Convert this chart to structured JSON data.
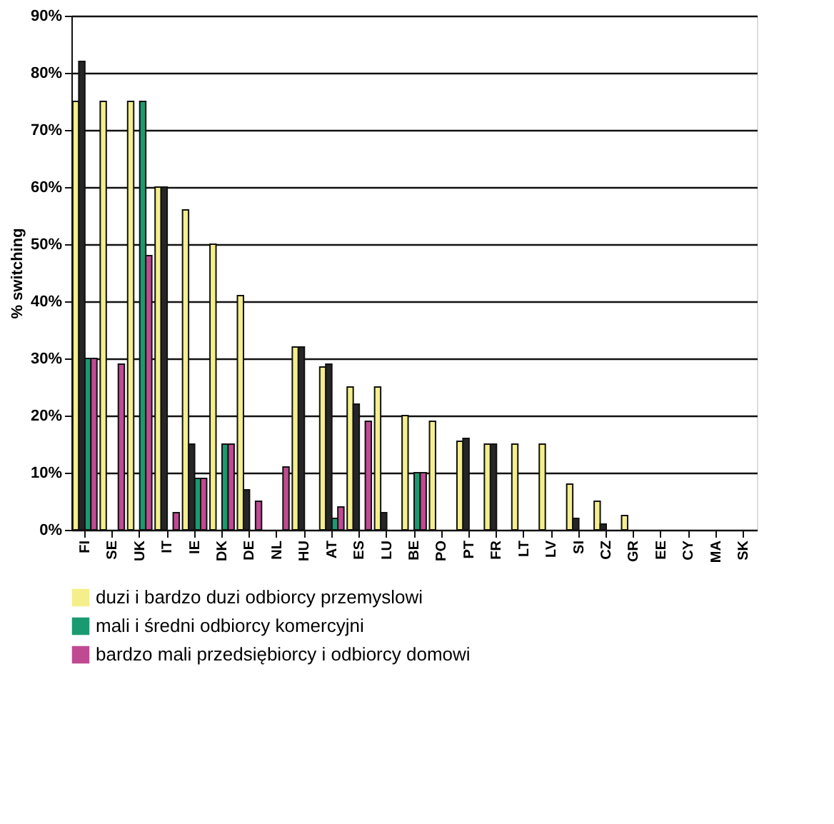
{
  "chart_data": {
    "type": "bar",
    "ylabel": "% switching",
    "categories": [
      "FI",
      "SE",
      "UK",
      "IT",
      "IE",
      "DK",
      "DE",
      "NL",
      "HU",
      "AT",
      "ES",
      "LU",
      "BE",
      "PO",
      "PT",
      "FR",
      "LT",
      "LV",
      "SI",
      "CZ",
      "GR",
      "EE",
      "CY",
      "MA",
      "SK"
    ],
    "series": [
      {
        "name": "duzi i bardzo duzi odbiorcy przemyslowi",
        "color": "#f4ef8a",
        "values": [
          75,
          75,
          75,
          60,
          56,
          50,
          41,
          null,
          32,
          28.5,
          25,
          25,
          20,
          19,
          15.5,
          15,
          15,
          15,
          8,
          5,
          2.5,
          null,
          null,
          null,
          null
        ]
      },
      {
        "color": "#262626",
        "values": [
          82,
          null,
          null,
          60,
          15,
          null,
          7,
          null,
          32,
          29,
          22,
          3,
          null,
          null,
          16,
          15,
          null,
          null,
          2,
          1,
          null,
          null,
          null,
          null,
          null
        ]
      },
      {
        "name": "mali i średni odbiorcy komercyjni",
        "color": "#1a9a70",
        "values": [
          30,
          null,
          75,
          null,
          9,
          15,
          null,
          null,
          null,
          2,
          null,
          null,
          10,
          null,
          null,
          null,
          null,
          null,
          null,
          null,
          null,
          null,
          null,
          null,
          null
        ]
      },
      {
        "name": "bardzo mali przedsiębiorcy i odbiorcy domowi",
        "color": "#c04a92",
        "values": [
          30,
          29,
          48,
          3,
          9,
          15,
          5,
          11,
          null,
          4,
          19,
          null,
          10,
          null,
          null,
          null,
          null,
          null,
          null,
          null,
          null,
          null,
          null,
          null,
          null
        ]
      }
    ],
    "ylim": [
      0,
      90
    ],
    "yticks": [
      {
        "value": 0,
        "label": "0%"
      },
      {
        "value": 10,
        "label": "10%"
      },
      {
        "value": 20,
        "label": "20%"
      },
      {
        "value": 30,
        "label": "30%"
      },
      {
        "value": 40,
        "label": "40%"
      },
      {
        "value": 50,
        "label": "50%"
      },
      {
        "value": 60,
        "label": "60%"
      },
      {
        "value": 70,
        "label": "70%"
      },
      {
        "value": 80,
        "label": "80%"
      },
      {
        "value": 90,
        "label": "90%"
      }
    ],
    "grid": "y",
    "legend": "bottom"
  }
}
